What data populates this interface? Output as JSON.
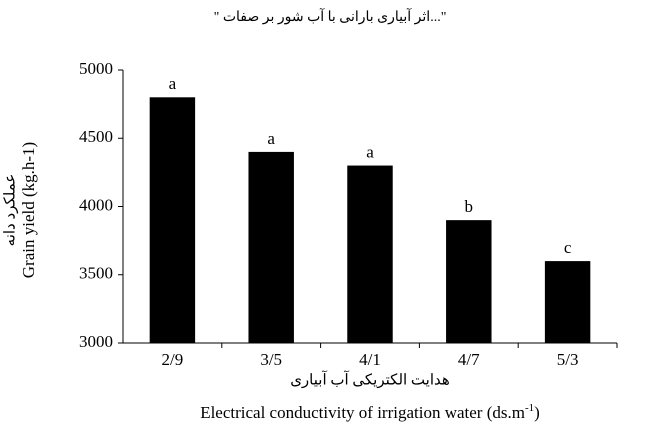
{
  "chart_data": {
    "type": "bar",
    "title": "\" اثر آبیاری بارانی با آب شور بر صفات...\"",
    "categories": [
      "2/9",
      "3/5",
      "4/1",
      "4/7",
      "5/3"
    ],
    "values": [
      4800,
      4400,
      4300,
      3900,
      3600
    ],
    "letters": [
      "a",
      "a",
      "a",
      "b",
      "c"
    ],
    "color": "#000000",
    "ylim": [
      3000,
      5000
    ],
    "yticks": [
      3000,
      3500,
      4000,
      4500,
      5000
    ],
    "grid": false,
    "y_label": "Grain yield (kg.h-1)",
    "y_label_fa": "عملکرد دانه",
    "x_label_fa": "هدایت الکتریکی آب آبیاری",
    "x_label": [
      "Electrical conductivity of irrigation water (ds.m",
      "-1",
      ")"
    ]
  }
}
